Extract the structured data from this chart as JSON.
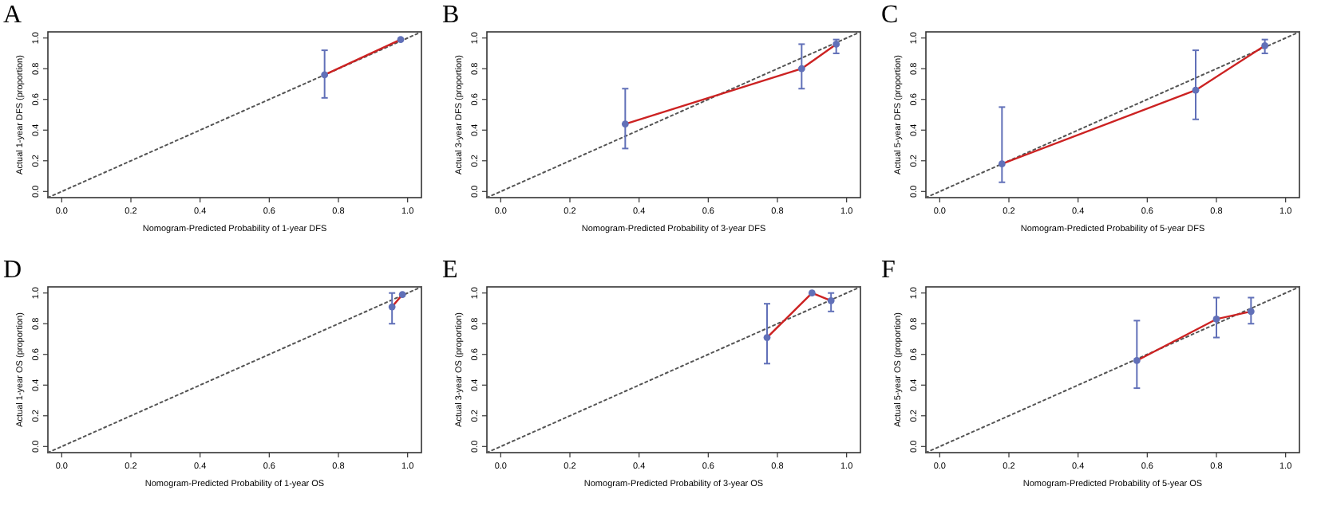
{
  "chart_data": [
    {
      "type": "line",
      "title": "A",
      "xlabel": "Nomogram-Predicted Probability of 1-year DFS",
      "ylabel": "Actual 1-year DFS (proportion)",
      "xlim": [
        -0.04,
        1.04
      ],
      "ylim": [
        -0.04,
        1.04
      ],
      "xticks": [
        {
          "value": 0,
          "label": "0.0"
        },
        {
          "value": 0.2,
          "label": "0.2"
        },
        {
          "value": 0.4,
          "label": "0.4"
        },
        {
          "value": 0.6,
          "label": "0.6"
        },
        {
          "value": 0.8,
          "label": "0.8"
        },
        {
          "value": 1,
          "label": "1.0"
        }
      ],
      "yticks": [
        {
          "value": 0,
          "label": "0.0"
        },
        {
          "value": 0.2,
          "label": "0.2"
        },
        {
          "value": 0.4,
          "label": "0.4"
        },
        {
          "value": 0.6,
          "label": "0.6"
        },
        {
          "value": 0.8,
          "label": "0.8"
        },
        {
          "value": 1,
          "label": "1.0"
        }
      ],
      "grid": false,
      "legend": false,
      "series": [
        {
          "x": [
            -0.04,
            1.04
          ],
          "values": [
            -0.04,
            1.04
          ],
          "color": "#555555",
          "line_style": "dotted",
          "marker": "none"
        },
        {
          "x": [
            0.76,
            0.98
          ],
          "values": [
            0.76,
            0.99
          ],
          "color": "#cc2222",
          "line_style": "solid",
          "marker": "circle",
          "errors": [
            [
              0.61,
              0.92
            ],
            null
          ]
        }
      ]
    },
    {
      "type": "line",
      "title": "B",
      "xlabel": "Nomogram-Predicted Probability of 3-year DFS",
      "ylabel": "Actual 3-year DFS (proportion)",
      "xlim": [
        -0.04,
        1.04
      ],
      "ylim": [
        -0.04,
        1.04
      ],
      "xticks": [
        {
          "value": 0,
          "label": "0.0"
        },
        {
          "value": 0.2,
          "label": "0.2"
        },
        {
          "value": 0.4,
          "label": "0.4"
        },
        {
          "value": 0.6,
          "label": "0.6"
        },
        {
          "value": 0.8,
          "label": "0.8"
        },
        {
          "value": 1,
          "label": "1.0"
        }
      ],
      "yticks": [
        {
          "value": 0,
          "label": "0.0"
        },
        {
          "value": 0.2,
          "label": "0.2"
        },
        {
          "value": 0.4,
          "label": "0.4"
        },
        {
          "value": 0.6,
          "label": "0.6"
        },
        {
          "value": 0.8,
          "label": "0.8"
        },
        {
          "value": 1,
          "label": "1.0"
        }
      ],
      "grid": false,
      "legend": false,
      "series": [
        {
          "x": [
            -0.04,
            1.04
          ],
          "values": [
            -0.04,
            1.04
          ],
          "color": "#555555",
          "line_style": "dotted",
          "marker": "none"
        },
        {
          "x": [
            0.36,
            0.87,
            0.97
          ],
          "values": [
            0.44,
            0.8,
            0.96
          ],
          "color": "#cc2222",
          "line_style": "solid",
          "marker": "circle",
          "errors": [
            [
              0.28,
              0.67
            ],
            [
              0.67,
              0.96
            ],
            [
              0.9,
              0.99
            ]
          ]
        }
      ]
    },
    {
      "type": "line",
      "title": "C",
      "xlabel": "Nomogram-Predicted Probability of 5-year DFS",
      "ylabel": "Actual 5-year DFS (proportion)",
      "xlim": [
        -0.04,
        1.04
      ],
      "ylim": [
        -0.04,
        1.04
      ],
      "xticks": [
        {
          "value": 0,
          "label": "0.0"
        },
        {
          "value": 0.2,
          "label": "0.2"
        },
        {
          "value": 0.4,
          "label": "0.4"
        },
        {
          "value": 0.6,
          "label": "0.6"
        },
        {
          "value": 0.8,
          "label": "0.8"
        },
        {
          "value": 1,
          "label": "1.0"
        }
      ],
      "yticks": [
        {
          "value": 0,
          "label": "0.0"
        },
        {
          "value": 0.2,
          "label": "0.2"
        },
        {
          "value": 0.4,
          "label": "0.4"
        },
        {
          "value": 0.6,
          "label": "0.6"
        },
        {
          "value": 0.8,
          "label": "0.8"
        },
        {
          "value": 1,
          "label": "1.0"
        }
      ],
      "grid": false,
      "legend": false,
      "series": [
        {
          "x": [
            -0.04,
            1.04
          ],
          "values": [
            -0.04,
            1.04
          ],
          "color": "#555555",
          "line_style": "dotted",
          "marker": "none"
        },
        {
          "x": [
            0.18,
            0.74,
            0.94
          ],
          "values": [
            0.18,
            0.66,
            0.95
          ],
          "color": "#cc2222",
          "line_style": "solid",
          "marker": "circle",
          "errors": [
            [
              0.06,
              0.55
            ],
            [
              0.47,
              0.92
            ],
            [
              0.9,
              0.99
            ]
          ]
        }
      ]
    },
    {
      "type": "line",
      "title": "D",
      "xlabel": "Nomogram-Predicted Probability of 1-year OS",
      "ylabel": "Actual 1-year OS (proportion)",
      "xlim": [
        -0.04,
        1.04
      ],
      "ylim": [
        -0.04,
        1.04
      ],
      "xticks": [
        {
          "value": 0,
          "label": "0.0"
        },
        {
          "value": 0.2,
          "label": "0.2"
        },
        {
          "value": 0.4,
          "label": "0.4"
        },
        {
          "value": 0.6,
          "label": "0.6"
        },
        {
          "value": 0.8,
          "label": "0.8"
        },
        {
          "value": 1,
          "label": "1.0"
        }
      ],
      "yticks": [
        {
          "value": 0,
          "label": "0.0"
        },
        {
          "value": 0.2,
          "label": "0.2"
        },
        {
          "value": 0.4,
          "label": "0.4"
        },
        {
          "value": 0.6,
          "label": "0.6"
        },
        {
          "value": 0.8,
          "label": "0.8"
        },
        {
          "value": 1,
          "label": "1.0"
        }
      ],
      "grid": false,
      "legend": false,
      "series": [
        {
          "x": [
            -0.04,
            1.04
          ],
          "values": [
            -0.04,
            1.04
          ],
          "color": "#555555",
          "line_style": "dotted",
          "marker": "none"
        },
        {
          "x": [
            0.955,
            0.985
          ],
          "values": [
            0.91,
            0.99
          ],
          "color": "#cc2222",
          "line_style": "solid",
          "marker": "circle",
          "errors": [
            [
              0.8,
              1.0
            ],
            null
          ]
        }
      ]
    },
    {
      "type": "line",
      "title": "E",
      "xlabel": "Nomogram-Predicted Probability of 3-year OS",
      "ylabel": "Actual 3-year OS (proportion)",
      "xlim": [
        -0.04,
        1.04
      ],
      "ylim": [
        -0.04,
        1.04
      ],
      "xticks": [
        {
          "value": 0,
          "label": "0.0"
        },
        {
          "value": 0.2,
          "label": "0.2"
        },
        {
          "value": 0.4,
          "label": "0.4"
        },
        {
          "value": 0.6,
          "label": "0.6"
        },
        {
          "value": 0.8,
          "label": "0.8"
        },
        {
          "value": 1,
          "label": "1.0"
        }
      ],
      "yticks": [
        {
          "value": 0,
          "label": "0.0"
        },
        {
          "value": 0.2,
          "label": "0.2"
        },
        {
          "value": 0.4,
          "label": "0.4"
        },
        {
          "value": 0.6,
          "label": "0.6"
        },
        {
          "value": 0.8,
          "label": "0.8"
        },
        {
          "value": 1,
          "label": "1.0"
        }
      ],
      "grid": false,
      "legend": false,
      "series": [
        {
          "x": [
            -0.04,
            1.04
          ],
          "values": [
            -0.04,
            1.04
          ],
          "color": "#555555",
          "line_style": "dotted",
          "marker": "none"
        },
        {
          "x": [
            0.77,
            0.9,
            0.955
          ],
          "values": [
            0.71,
            1.0,
            0.95
          ],
          "color": "#cc2222",
          "line_style": "solid",
          "marker": "circle",
          "errors": [
            [
              0.54,
              0.93
            ],
            null,
            [
              0.88,
              1.0
            ]
          ]
        }
      ]
    },
    {
      "type": "line",
      "title": "F",
      "xlabel": "Nomogram-Predicted Probability of 5-year OS",
      "ylabel": "Actual 5-year OS (proportion)",
      "xlim": [
        -0.04,
        1.04
      ],
      "ylim": [
        -0.04,
        1.04
      ],
      "xticks": [
        {
          "value": 0,
          "label": "0.0"
        },
        {
          "value": 0.2,
          "label": "0.2"
        },
        {
          "value": 0.4,
          "label": "0.4"
        },
        {
          "value": 0.6,
          "label": "0.6"
        },
        {
          "value": 0.8,
          "label": "0.8"
        },
        {
          "value": 1,
          "label": "1.0"
        }
      ],
      "yticks": [
        {
          "value": 0,
          "label": "0.0"
        },
        {
          "value": 0.2,
          "label": "0.2"
        },
        {
          "value": 0.4,
          "label": "0.4"
        },
        {
          "value": 0.6,
          "label": "0.6"
        },
        {
          "value": 0.8,
          "label": "0.8"
        },
        {
          "value": 1,
          "label": "1.0"
        }
      ],
      "grid": false,
      "legend": false,
      "series": [
        {
          "x": [
            -0.04,
            1.04
          ],
          "values": [
            -0.04,
            1.04
          ],
          "color": "#555555",
          "line_style": "dotted",
          "marker": "none"
        },
        {
          "x": [
            0.57,
            0.8,
            0.9
          ],
          "values": [
            0.56,
            0.83,
            0.88
          ],
          "color": "#cc2222",
          "line_style": "solid",
          "marker": "circle",
          "errors": [
            [
              0.38,
              0.82
            ],
            [
              0.71,
              0.97
            ],
            [
              0.8,
              0.97
            ]
          ]
        }
      ]
    }
  ]
}
